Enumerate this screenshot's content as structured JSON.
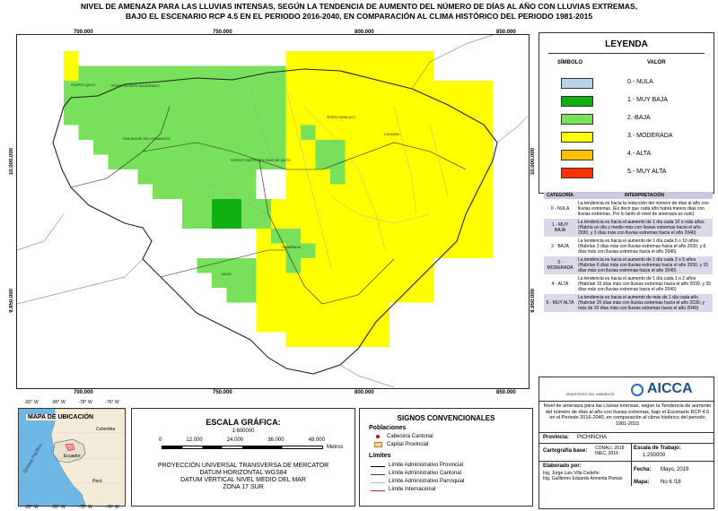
{
  "title": {
    "line1": "NIVEL DE AMENAZA PARA LAS LLUVIAS INTENSAS, SEGÚN LA TENDENCIA DE AUMENTO DEL NÚMERO DE DÍAS AL AÑO CON LLUVIAS EXTREMAS,",
    "line2": "BAJO EL ESCENARIO RCP 4.5 EN EL PERIODO 2016-2040, EN COMPARACIÓN AL CLIMA HISTÓRICO DEL PERIODO 1981-2015"
  },
  "map": {
    "x_ticks": [
      "700.000",
      "750.000",
      "800.000",
      "850.000"
    ],
    "y_ticks": [
      "10.000.000",
      "9.950.000"
    ],
    "place_labels": [
      "PUERTO QUITO",
      "PEDRO VICENTE MALDONADO",
      "SAN MIGUEL DE LOS BANCOS",
      "DISTRITO METROPOLITANO DE QUITO",
      "PEDRO MONCAYO",
      "CAYAMBE",
      "RUMIÑAHUI",
      "MEJIA"
    ],
    "colors": {
      "nula": "#b7d3ea",
      "muy_baja": "#0fb00f",
      "baja": "#78e05a",
      "moderada": "#ffff00",
      "alta": "#ffc000",
      "muy_alta": "#ff3300"
    }
  },
  "legend": {
    "title": "LEYENDA",
    "col_symbol": "SÍMBOLO",
    "col_value": "VALOR",
    "items": [
      {
        "label": "0.- NULA",
        "color": "#b7d3ea"
      },
      {
        "label": "1.- MUY BAJA",
        "color": "#0fb00f"
      },
      {
        "label": "2.-BAJA",
        "color": "#78e05a"
      },
      {
        "label": "3.- MODERADA",
        "color": "#ffff00"
      },
      {
        "label": "4.- ALTA",
        "color": "#ffc000"
      },
      {
        "label": "5.- MUY ALTA",
        "color": "#ff3300"
      }
    ]
  },
  "interpretation": {
    "col_category": "CATEGORÍA",
    "col_interp": "INTERPRETACIÓN",
    "rows": [
      {
        "cat": "0 - NULA",
        "text": "La tendencia es hacia la reducción del número de días al año con lluvias extremas. (Es decir que cada año habrá menos días con lluvias extremas. Por lo tanto el nivel de amenaza es nulo)"
      },
      {
        "cat": "1 - MUY BAJA",
        "text": "La tendencia es hacia el aumento de 1 día cada 10 o más años (Habría un día y medio más con lluvias extremas hacia el año 2030, y 3 días más con lluvias extremas hacia el año 2040)"
      },
      {
        "cat": "2 - BAJA",
        "text": "La tendencia es hacia el aumento de 1 día cada 5 o 10 años (Habrían 3 días más con lluvias extremas hacia el año 2030, y 6 días más con lluvias extremas hacia el año 2040)"
      },
      {
        "cat": "3 - MODERADA",
        "text": "La tendencia es hacia el aumento de 1 día cada 2 o 5 años (Habrían 6 días más con lluvias extremas hacia el año 2030, y 15 días más con lluvias extremas hacia el año 2040)"
      },
      {
        "cat": "4 - ALTA",
        "text": "La tendencia es hacia el aumento de 1 día cada 1 o 2 años (Habrían 15 días más con lluvias extremas hacia el año 2030, y 30 días más con lluvias extremas hacia el año 2040)"
      },
      {
        "cat": "5 - MUY ALTA",
        "text": "La tendencia es hacia el aumento de más de 1 día cada año (Habrían 20 días más con lluvias extremas hacia el año 2030, y más de 30 días más con lluvias extremas hacia el año 2040)"
      }
    ]
  },
  "location_map": {
    "title": "MAPA DE UBICACIÓN",
    "top_ticks": [
      "-82° W",
      "-80° W",
      "-78° W",
      "-76° W"
    ],
    "bottom_ticks": [
      "-82° W",
      "-80° W",
      "-78° W",
      "-76° W"
    ],
    "countries": [
      "Colombia",
      "Ecuador",
      "Perú"
    ],
    "ocean": "Océano Pacífico"
  },
  "scale": {
    "title": "ESCALA GRÁFICA:",
    "ratio": "1:600000",
    "ticks": [
      "0",
      "12.000",
      "24.000",
      "36.000",
      "48.000"
    ],
    "unit": "Metros",
    "projection": [
      "PROYECCIÓN UNIVERSAL TRANSVERSA DE MERCATOR",
      "DATUM HORIZONTAL WGS84",
      "DATUM VERTICAL NIVEL MEDIO DEL MAR",
      "ZONA 17 SUR"
    ]
  },
  "signs": {
    "title": "SIGNOS CONVENCIONALES",
    "poblaciones": "Poblaciones",
    "cabecera": "Cabecera Cantonal",
    "capital": "Capital Provincial",
    "limites": "Límites",
    "items": [
      "Límite Administrativo Provincial",
      "Límite Administrativo Cantonal",
      "Límite Administrativo Parroquial",
      "Límite Internacional"
    ]
  },
  "info": {
    "ministry": "MINISTERIO DEL AMBIENTE",
    "project": "AICCA",
    "description": "Nivel de amenaza para las Lluvias intensas, según la Tendencia de aumento del número de días al año con lluvias extremas, bajo el Escenario RCP 4.5 en el Periodo 2016-2040, en comparación al clima histórico del periodo 1981-2015",
    "provincia_label": "Provincia:",
    "provincia": "PICHINCHA",
    "cartografia_label": "Cartografía base:",
    "cartografia": [
      "CONALI, 2018",
      "INEC, 2016"
    ],
    "escala_label": "Escala de Trabajo:",
    "escala": "1:250000",
    "elaborado_label": "Elaborado por:",
    "elaborado": [
      "Ing. Jorge Luis Villa Cedeño",
      "Ing. Guillermo Eduardo Armenta Pomas"
    ],
    "fecha_label": "Fecha:",
    "fecha": "Mayo, 2019",
    "mapa_label": "Mapa:",
    "mapa": "No 6 /18"
  }
}
